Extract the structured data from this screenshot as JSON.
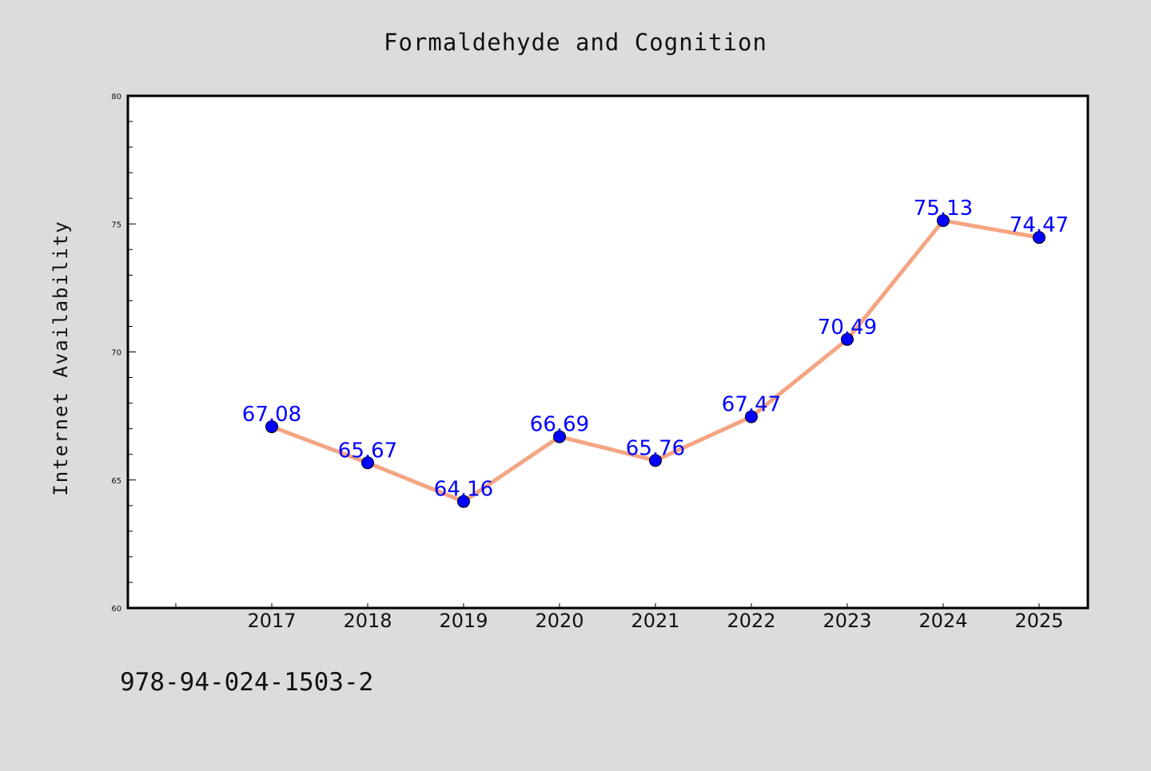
{
  "colors": {
    "background": "#dcdcdc",
    "plot_background": "#ffffff",
    "line": "#f4a582",
    "marker": "#0000ff",
    "label": "#0000ff"
  },
  "footer": {
    "isbn": "978-94-024-1503-2"
  },
  "chart_data": {
    "type": "line",
    "title": "Formaldehyde and Cognition",
    "xlabel": "",
    "ylabel": "Internet Availability",
    "categories": [
      "2017",
      "2018",
      "2019",
      "2020",
      "2021",
      "2022",
      "2023",
      "2024",
      "2025"
    ],
    "values": [
      67.08,
      65.67,
      64.16,
      66.69,
      65.76,
      67.47,
      70.49,
      75.13,
      74.47
    ],
    "data_labels": [
      "67.08",
      "65.67",
      "64.16",
      "66.69",
      "65.76",
      "67.47",
      "70.49",
      "75.13",
      "74.47"
    ],
    "ylim": [
      60,
      80
    ],
    "yticks": [
      "60",
      "65",
      "70",
      "75",
      "80"
    ],
    "grid": false,
    "legend": "none",
    "marker": "circle"
  }
}
